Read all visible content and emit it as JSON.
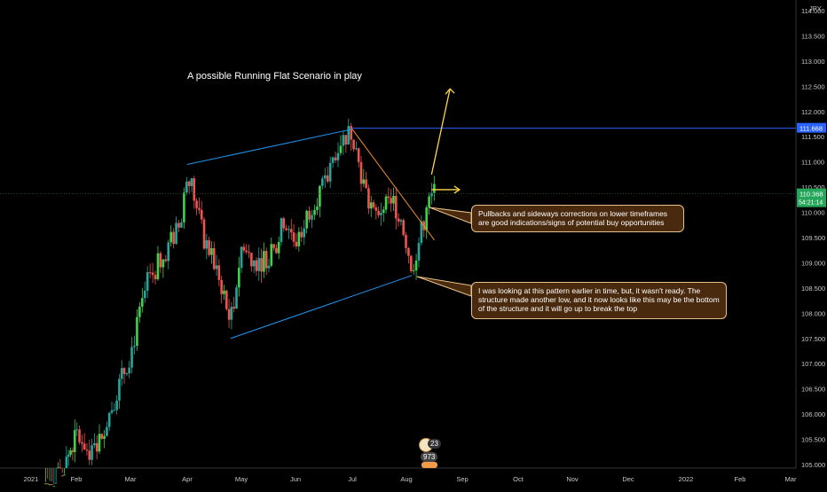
{
  "chart_data": {
    "type": "candlestick",
    "title": "A possible Running Flat Scenario in play",
    "currency": "JPY",
    "x_ticks": [
      "2021",
      "Feb",
      "Mar",
      "Apr",
      "May",
      "Jun",
      "Jul",
      "Aug",
      "Sep",
      "Oct",
      "Nov",
      "Dec",
      "2022",
      "Feb",
      "Mar"
    ],
    "y_ticks": [
      "105.000",
      "105.500",
      "106.000",
      "106.500",
      "107.000",
      "107.500",
      "108.000",
      "108.500",
      "109.000",
      "109.500",
      "110.000",
      "110.500",
      "111.000",
      "111.500",
      "112.000",
      "112.500",
      "113.000",
      "113.500",
      "114.000"
    ],
    "ylim": [
      104.95,
      114.2
    ],
    "price_key_points": [
      {
        "t": 0.0,
        "p": 104.0
      },
      {
        "t": 0.7,
        "p": 104.9
      },
      {
        "t": 1.0,
        "p": 105.6
      },
      {
        "t": 1.3,
        "p": 105.2
      },
      {
        "t": 1.6,
        "p": 106.0
      },
      {
        "t": 2.0,
        "p": 107.2
      },
      {
        "t": 2.3,
        "p": 108.6
      },
      {
        "t": 2.6,
        "p": 109.2
      },
      {
        "t": 2.9,
        "p": 109.8
      },
      {
        "t": 3.0,
        "p": 110.9
      },
      {
        "t": 3.3,
        "p": 109.5
      },
      {
        "t": 3.6,
        "p": 108.7
      },
      {
        "t": 3.8,
        "p": 107.8
      },
      {
        "t": 4.0,
        "p": 109.3
      },
      {
        "t": 4.3,
        "p": 109.0
      },
      {
        "t": 4.6,
        "p": 109.2
      },
      {
        "t": 4.8,
        "p": 109.9
      },
      {
        "t": 5.0,
        "p": 109.4
      },
      {
        "t": 5.3,
        "p": 110.2
      },
      {
        "t": 5.55,
        "p": 110.6
      },
      {
        "t": 5.75,
        "p": 111.4
      },
      {
        "t": 6.0,
        "p": 111.6
      },
      {
        "t": 6.2,
        "p": 110.6
      },
      {
        "t": 6.4,
        "p": 109.9
      },
      {
        "t": 6.7,
        "p": 110.3
      },
      {
        "t": 6.9,
        "p": 109.9
      },
      {
        "t": 7.1,
        "p": 108.9
      },
      {
        "t": 7.35,
        "p": 110.0
      },
      {
        "t": 7.5,
        "p": 110.4
      }
    ],
    "price_label": "110.368",
    "countdown_label": "54:21:14",
    "resistance_label": "111.668",
    "resistance_price": 111.668,
    "last_price": 110.368,
    "channel_upper": [
      {
        "t": 3.0,
        "p": 110.95
      },
      {
        "t": 6.0,
        "p": 111.65
      }
    ],
    "channel_lower": [
      {
        "t": 3.8,
        "p": 107.5
      },
      {
        "t": 7.1,
        "p": 108.75
      }
    ],
    "orange_trendline": [
      {
        "t": 6.0,
        "p": 111.65
      },
      {
        "t": 7.5,
        "p": 109.45
      }
    ],
    "projection_arrow": [
      {
        "t": 7.45,
        "p": 110.75
      },
      {
        "t": 7.78,
        "p": 112.45
      }
    ],
    "right_arrow": [
      {
        "t": 7.45,
        "p": 110.45
      },
      {
        "t": 7.95,
        "p": 110.45
      }
    ]
  },
  "annotations": {
    "title": "A possible Running Flat Scenario in play",
    "callout_1": "Pullbacks and sideways corrections on lower timeframes are good indications/signs of potential buy opportunities",
    "callout_2": "I was looking at this pattern earlier in time, but, it wasn't ready. The structure made another low, and it now looks like this may be the bottom of the structure and it will go up to break the top"
  },
  "badges": {
    "likes": "23",
    "boosts": "973"
  },
  "colors": {
    "up": "#26a69a",
    "up_bright": "#3fd24c",
    "down": "#ef5350",
    "channel": "#2196f3",
    "orange": "#f28c28",
    "resistance": "#2962ff",
    "price_badge": "#26a65b",
    "axis_text": "#c8c8c8",
    "yellow": "#ffd54a"
  }
}
